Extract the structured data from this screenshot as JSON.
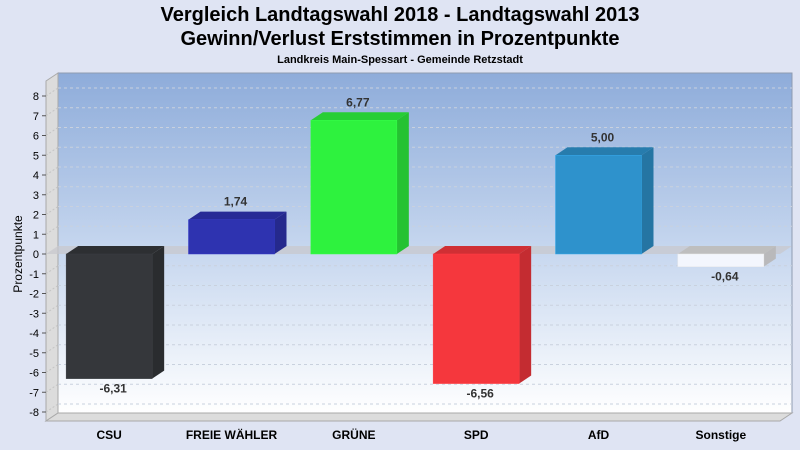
{
  "chart_data": {
    "type": "bar",
    "title": "Vergleich Landtagswahl 2018 - Landtagswahl 2013",
    "subtitle": "Gewinn/Verlust Erststimmen in Prozentpunkte",
    "subsubtitle": "Landkreis Main-Spessart - Gemeinde Retzstadt",
    "xlabel": "",
    "ylabel": "Prozentpunkte",
    "ylim": [
      -8,
      8
    ],
    "yticks": [
      8,
      7,
      6,
      5,
      4,
      3,
      2,
      1,
      0,
      -1,
      -2,
      -3,
      -4,
      -5,
      -6,
      -7,
      -8
    ],
    "grid": true,
    "categories": [
      "CSU",
      "FREIE WÄHLER",
      "GRÜNE",
      "SPD",
      "AfD",
      "Sonstige"
    ],
    "values": [
      -6.31,
      1.74,
      6.77,
      -6.56,
      5.0,
      -0.64
    ],
    "value_labels": [
      "-6,31",
      "1,74",
      "6,77",
      "-6,56",
      "5,00",
      "-0,64"
    ],
    "colors": [
      "#35373b",
      "#2e33b0",
      "#2ef23e",
      "#f5373d",
      "#2e92cc",
      "#f3f6fd"
    ]
  }
}
